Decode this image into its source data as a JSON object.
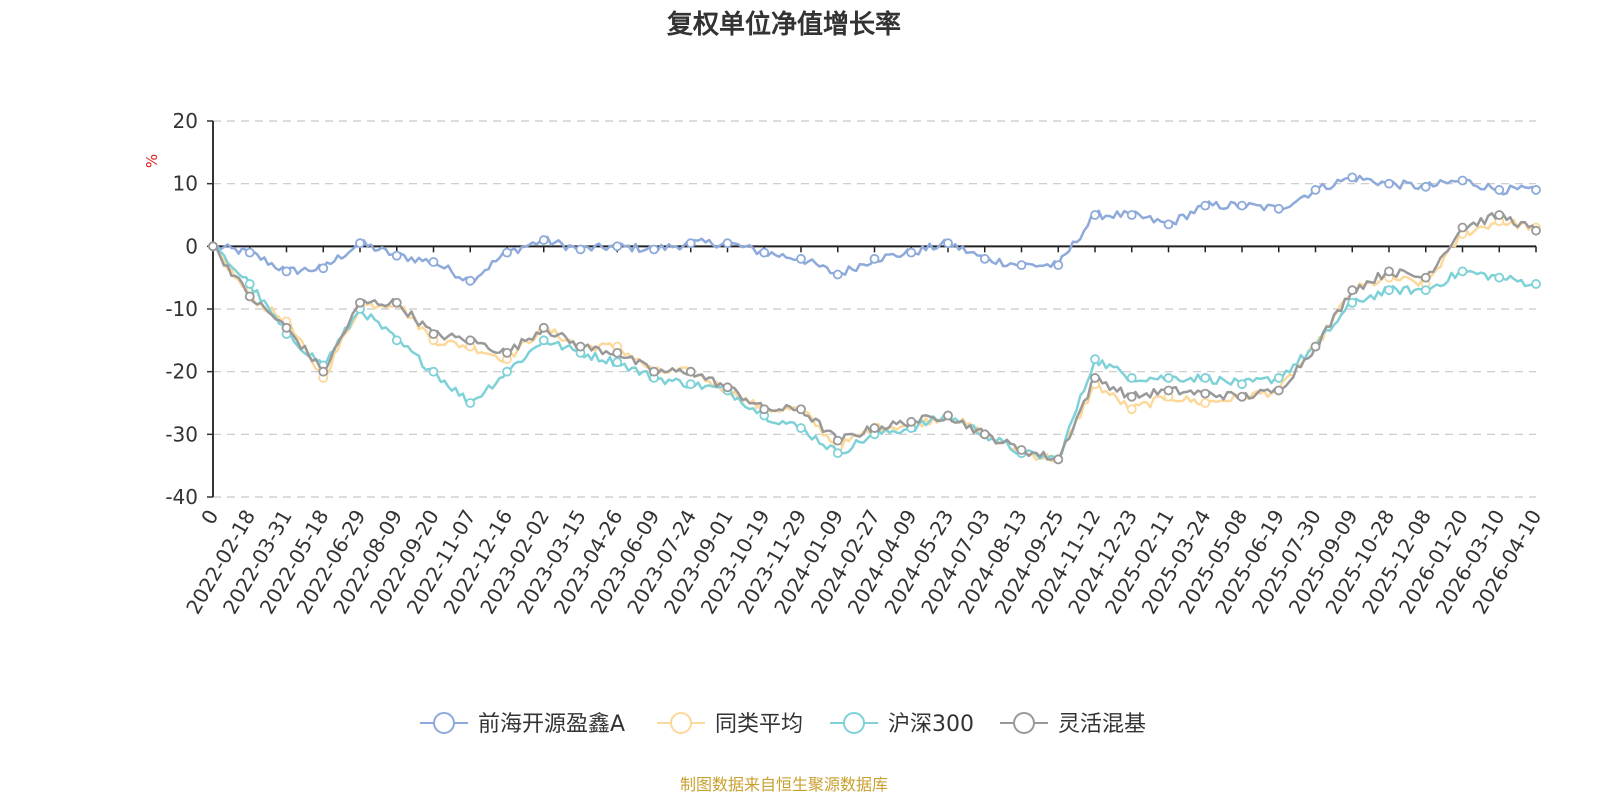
{
  "chart_data": {
    "type": "line",
    "title": "复权单位净值增长率",
    "ylabel": "%",
    "ylim": [
      -40,
      20
    ],
    "yticks": [
      20,
      10,
      0,
      -10,
      -20,
      -30,
      -40
    ],
    "categories": [
      "0",
      "2022-02-18",
      "2022-03-31",
      "2022-05-18",
      "2022-06-29",
      "2022-08-09",
      "2022-09-20",
      "2022-11-07",
      "2022-12-16",
      "2023-02-02",
      "2023-03-15",
      "2023-04-26",
      "2023-06-09",
      "2023-07-24",
      "2023-09-01",
      "2023-10-19",
      "2023-11-29",
      "2024-01-09",
      "2024-02-27",
      "2024-04-09",
      "2024-05-23",
      "2024-07-03",
      "2024-08-13",
      "2024-09-25",
      "2024-11-12",
      "2024-12-23",
      "2025-02-11",
      "2025-03-24",
      "2025-05-08",
      "2025-06-19",
      "2025-07-30",
      "2025-09-09",
      "2025-10-28",
      "2025-12-08",
      "2026-01-20",
      "2026-03-10",
      "2026-04-10"
    ],
    "series": [
      {
        "name": "前海开源盈鑫A",
        "color": "#8eaadb",
        "values": [
          0,
          -1,
          -4,
          -3.5,
          0.5,
          -1.5,
          -2.5,
          -5.5,
          -1,
          1,
          -0.5,
          0,
          -0.5,
          0.5,
          0.5,
          -1,
          -2,
          -4.5,
          -2,
          -1,
          0.5,
          -2,
          -3,
          -3,
          5,
          5,
          3.5,
          6.5,
          6.5,
          6,
          9,
          11,
          10,
          9.5,
          10.5,
          9,
          9
        ]
      },
      {
        "name": "同类平均",
        "color": "#fcd89a",
        "values": [
          0,
          -8,
          -12,
          -21,
          -9.5,
          -9,
          -15,
          -16,
          -18,
          -13,
          -16,
          -16,
          -20,
          -20,
          -23,
          -26,
          -26,
          -32,
          -29,
          -28.5,
          -27,
          -30,
          -33,
          -34,
          -22,
          -26,
          -24,
          -25,
          -24,
          -23,
          -16,
          -7,
          -5,
          -6,
          2,
          4,
          3
        ]
      },
      {
        "name": "沪深300",
        "color": "#7fd1d8",
        "values": [
          0,
          -6,
          -14,
          -19,
          -10,
          -15,
          -20,
          -25,
          -20,
          -15,
          -17,
          -18.5,
          -21,
          -22,
          -23,
          -27,
          -29,
          -33,
          -30,
          -29,
          -27,
          -30,
          -33,
          -34,
          -18,
          -21,
          -21,
          -21,
          -22,
          -21,
          -16,
          -9,
          -7,
          -7,
          -4,
          -5,
          -6
        ]
      },
      {
        "name": "灵活混基",
        "color": "#999999",
        "values": [
          0,
          -8,
          -13,
          -20,
          -9,
          -9,
          -14,
          -15,
          -17,
          -13,
          -16,
          -17,
          -20,
          -20,
          -22.5,
          -26,
          -26,
          -31,
          -29,
          -28,
          -27,
          -30,
          -32.5,
          -34,
          -21,
          -24,
          -23,
          -23.5,
          -24,
          -23,
          -16,
          -7,
          -4,
          -5,
          3,
          5,
          2.5
        ]
      }
    ],
    "legend_position": "bottom-center",
    "grid": true
  },
  "footer": {
    "source_text": "制图数据来自恒生聚源数据库",
    "source_color": "#c8a030"
  },
  "unit_color": "#e02020"
}
